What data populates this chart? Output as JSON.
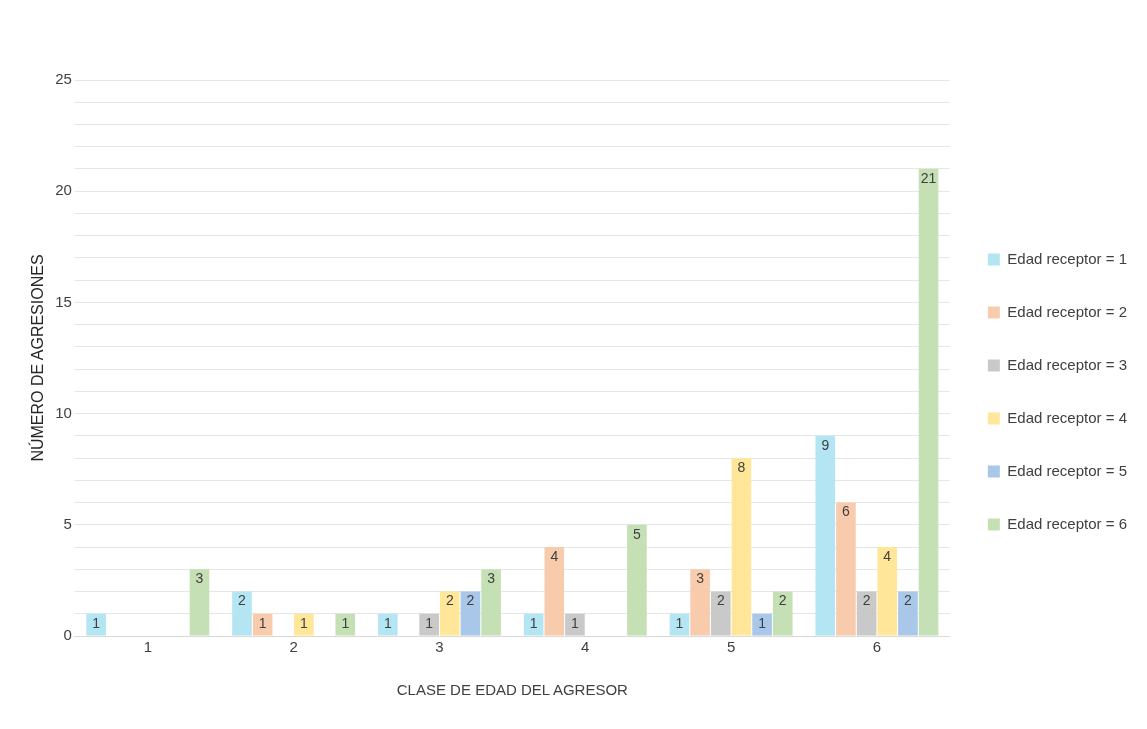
{
  "chart_data": {
    "type": "bar",
    "xlabel": "CLASE DE EDAD DEL AGRESOR",
    "ylabel": "NÚMERO DE AGRESIONES",
    "categories": [
      "1",
      "2",
      "3",
      "4",
      "5",
      "6"
    ],
    "series": [
      {
        "name": "Edad receptor = 1",
        "color": "#b4e5f2",
        "values": [
          1,
          2,
          1,
          1,
          1,
          9
        ],
        "value_labels": [
          "1",
          "2",
          "1",
          "1",
          "1",
          "9"
        ]
      },
      {
        "name": "Edad receptor = 2",
        "color": "#f8cbad",
        "values": [
          0,
          1,
          0,
          4,
          3,
          6
        ],
        "value_labels": [
          null,
          "1",
          null,
          "4",
          "3",
          "6"
        ]
      },
      {
        "name": "Edad receptor = 3",
        "color": "#c9c9c9",
        "values": [
          0,
          0,
          1,
          1,
          2,
          2
        ],
        "value_labels": [
          null,
          null,
          "1",
          "1",
          "2",
          "2"
        ]
      },
      {
        "name": "Edad receptor = 4",
        "color": "#ffe699",
        "values": [
          0,
          1,
          2,
          0,
          8,
          4
        ],
        "value_labels": [
          null,
          "1",
          "2",
          null,
          "8",
          "4"
        ]
      },
      {
        "name": "Edad receptor = 5",
        "color": "#a9c7e8",
        "values": [
          0,
          0,
          2,
          0,
          1,
          2
        ],
        "value_labels": [
          null,
          null,
          "2",
          null,
          "1",
          "2"
        ]
      },
      {
        "name": "Edad receptor = 6",
        "color": "#c5e0b4",
        "values": [
          3,
          1,
          3,
          5,
          2,
          21
        ],
        "value_labels": [
          "3",
          "1",
          "3",
          "5",
          "2",
          "21"
        ]
      }
    ],
    "ylim": [
      0,
      25
    ],
    "yticks": [
      0,
      {
        "value": 1,
        "label": null
      },
      {
        "value": 2,
        "label": null
      },
      {
        "value": 3,
        "label": null
      },
      {
        "value": 4,
        "label": null
      },
      5,
      {
        "value": 6,
        "label": null
      },
      {
        "value": 7,
        "label": null
      },
      {
        "value": 8,
        "label": null
      },
      {
        "value": 9,
        "label": null
      },
      10,
      {
        "value": 11,
        "label": null
      },
      {
        "value": 12,
        "label": null
      },
      {
        "value": 13,
        "label": null
      },
      {
        "value": 14,
        "label": null
      },
      15,
      {
        "value": 16,
        "label": null
      },
      {
        "value": 17,
        "label": null
      },
      {
        "value": 18,
        "label": null
      },
      {
        "value": 19,
        "label": null
      },
      20,
      {
        "value": 21,
        "label": null
      },
      {
        "value": 22,
        "label": null
      },
      {
        "value": 23,
        "label": null
      },
      {
        "value": 24,
        "label": null
      },
      25
    ],
    "grid": "y",
    "legend": "right"
  }
}
